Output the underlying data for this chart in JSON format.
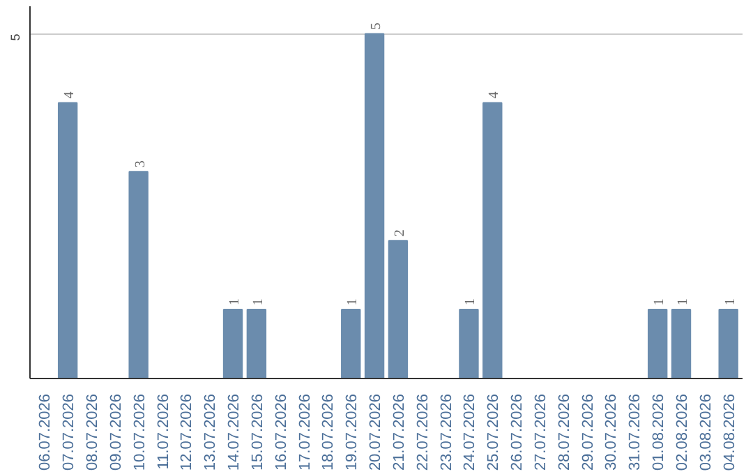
{
  "chart_data": {
    "type": "bar",
    "categories": [
      "06.07.2026",
      "07.07.2026",
      "08.07.2026",
      "09.07.2026",
      "10.07.2026",
      "11.07.2026",
      "12.07.2026",
      "13.07.2026",
      "14.07.2026",
      "15.07.2026",
      "16.07.2026",
      "17.07.2026",
      "18.07.2026",
      "19.07.2026",
      "20.07.2026",
      "21.07.2026",
      "22.07.2026",
      "23.07.2026",
      "24.07.2026",
      "25.07.2026",
      "26.07.2026",
      "27.07.2026",
      "28.07.2026",
      "29.07.2026",
      "30.07.2026",
      "31.07.2026",
      "01.08.2026",
      "02.08.2026",
      "03.08.2026",
      "04.08.2026"
    ],
    "values": [
      0,
      4,
      0,
      0,
      3,
      0,
      0,
      0,
      1,
      1,
      0,
      0,
      0,
      1,
      5,
      2,
      0,
      0,
      1,
      4,
      0,
      0,
      0,
      0,
      0,
      0,
      1,
      1,
      0,
      1
    ],
    "value_labels": [
      null,
      "4",
      null,
      null,
      "3",
      null,
      null,
      null,
      "1",
      "1",
      null,
      null,
      null,
      "1",
      "5",
      "2",
      null,
      null,
      "1",
      "4",
      null,
      null,
      null,
      null,
      null,
      null,
      "1",
      "1",
      null,
      "1"
    ],
    "color": "#6b8cad",
    "ylim": [
      0,
      5.4
    ],
    "yticks": [
      5
    ],
    "grid": "y"
  }
}
